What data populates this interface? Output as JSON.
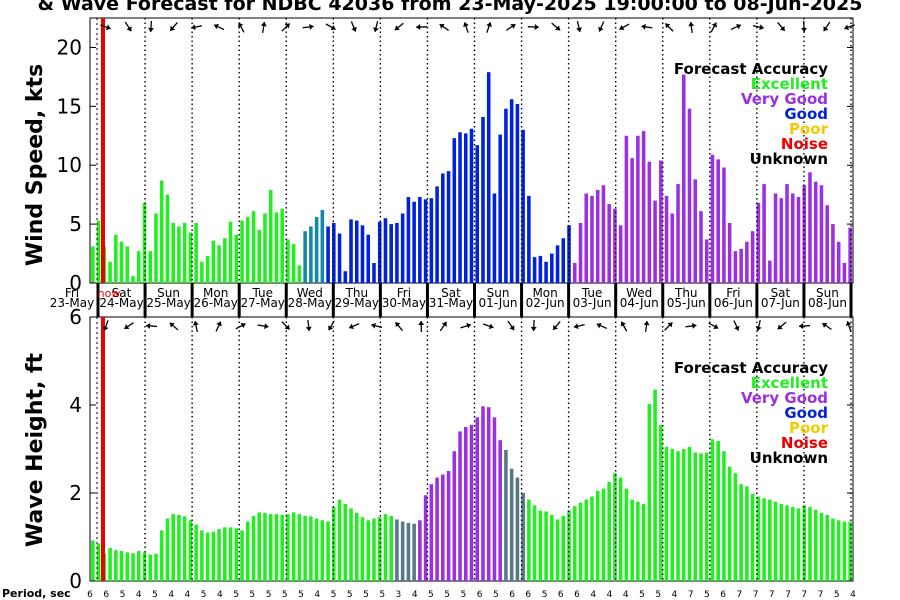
{
  "chart_data": [
    {
      "type": "bar",
      "title": "& Wave Forecast for NDBC 42036 from 23-May-2025 19:00:00 to 08-Jun-2025",
      "ylabel": "Wind Speed, kts",
      "ylim": [
        0,
        22.5
      ],
      "yticks": [
        0,
        5,
        10,
        15,
        20
      ],
      "grid": "dotted vertical lines at day boundaries",
      "now_marker_label": "now",
      "legend": {
        "title": "Forecast Accuracy",
        "position": "top-right",
        "items": [
          {
            "label": "Excellent",
            "color": "#22ee22"
          },
          {
            "label": "Very Good",
            "color": "#9a30e0"
          },
          {
            "label": "Good",
            "color": "#0022dd"
          },
          {
            "label": "Poor",
            "color": "#f0cc00"
          },
          {
            "label": "Noise",
            "color": "#ee0000"
          },
          {
            "label": "Unknown",
            "color": "#000000"
          }
        ]
      },
      "day_labels": [
        {
          "day": "Fri",
          "date": "23-May"
        },
        {
          "day": "Sat",
          "date": "24-May"
        },
        {
          "day": "Sun",
          "date": "25-May"
        },
        {
          "day": "Mon",
          "date": "26-May"
        },
        {
          "day": "Tue",
          "date": "27-May"
        },
        {
          "day": "Wed",
          "date": "28-May"
        },
        {
          "day": "Thu",
          "date": "29-May"
        },
        {
          "day": "Fri",
          "date": "30-May"
        },
        {
          "day": "Sat",
          "date": "31-May"
        },
        {
          "day": "Sun",
          "date": "01-Jun"
        },
        {
          "day": "Mon",
          "date": "02-Jun"
        },
        {
          "day": "Tue",
          "date": "03-Jun"
        },
        {
          "day": "Wed",
          "date": "04-Jun"
        },
        {
          "day": "Thu",
          "date": "05-Jun"
        },
        {
          "day": "Fri",
          "date": "06-Jun"
        },
        {
          "day": "Sat",
          "date": "07-Jun"
        },
        {
          "day": "Sun",
          "date": "08-Jun"
        }
      ],
      "values": [
        3.1,
        5.3,
        3.1,
        1.8,
        4.1,
        3.5,
        3.1,
        0.6,
        2.7,
        6.8,
        2.7,
        5.9,
        8.7,
        7.5,
        5.1,
        4.8,
        5.1,
        4.3,
        5.1,
        1.8,
        2.3,
        3.6,
        3.2,
        3.8,
        5.2,
        4.1,
        5.3,
        5.6,
        6.1,
        4.5,
        5.9,
        7.9,
        6.0,
        6.3,
        3.7,
        3.3,
        1.5,
        4.4,
        4.8,
        5.6,
        6.2,
        4.8,
        5.1,
        4.2,
        1.0,
        5.4,
        5.3,
        4.9,
        4.1,
        1.7,
        5.2,
        5.5,
        5.0,
        5.1,
        5.9,
        7.3,
        6.9,
        7.3,
        7.1,
        7.2,
        8.2,
        9.3,
        9.5,
        12.3,
        12.8,
        12.7,
        13.1,
        11.7,
        14.1,
        17.9,
        7.6,
        12.6,
        14.8,
        15.6,
        15.2,
        13.0,
        7.4,
        2.2,
        2.3,
        1.8,
        2.5,
        3.2,
        3.8,
        4.9,
        1.7,
        5.1,
        7.6,
        7.4,
        7.9,
        8.3,
        6.7,
        6.3,
        4.9,
        12.5,
        10.6,
        12.5,
        12.9,
        10.3,
        7.0,
        10.4,
        7.4,
        5.9,
        8.4,
        17.7,
        14.8,
        8.8,
        6.1,
        3.7,
        10.9,
        10.5,
        9.8,
        5.1,
        2.7,
        2.9,
        3.5,
        4.4,
        6.8,
        8.4,
        1.9,
        7.6,
        7.2,
        8.4,
        7.6,
        7.3,
        8.3,
        9.4,
        8.6,
        8.3,
        6.6,
        5.0,
        3.5,
        1.7,
        4.7
      ],
      "colors_by_range": [
        {
          "from": 0,
          "to": 36,
          "color": "#22ee22"
        },
        {
          "from": 37,
          "to": 40,
          "color": "#1188aa"
        },
        {
          "from": 41,
          "to": 76,
          "color": "#0022dd"
        },
        {
          "from": 77,
          "to": 83,
          "color": "#0022dd"
        },
        {
          "from": 84,
          "to": 132,
          "color": "#9a30e0"
        }
      ]
    },
    {
      "type": "bar",
      "ylabel": "Wave Height, ft",
      "xlabel": "Period, sec",
      "ylim": [
        0,
        6
      ],
      "yticks": [
        0,
        2,
        4,
        6
      ],
      "legend": {
        "title": "Forecast Accuracy",
        "position": "top-right",
        "items": [
          {
            "label": "Excellent",
            "color": "#22ee22"
          },
          {
            "label": "Very Good",
            "color": "#9a30e0"
          },
          {
            "label": "Good",
            "color": "#0022dd"
          },
          {
            "label": "Poor",
            "color": "#f0cc00"
          },
          {
            "label": "Noise",
            "color": "#ee0000"
          },
          {
            "label": "Unknown",
            "color": "#000000"
          }
        ]
      },
      "period_labels": [
        "6",
        "6",
        "5",
        "4",
        "5",
        "4",
        "4",
        "5",
        "4",
        "5",
        "5",
        "5",
        "5",
        "5",
        "4",
        "5",
        "5",
        "5",
        "5",
        "3",
        "4",
        "5",
        "5",
        "5",
        "6",
        "5",
        "6",
        "6",
        "5",
        "6",
        "6",
        "4",
        "4",
        "4",
        "5",
        "5",
        "4",
        "7",
        "5",
        "6",
        "7",
        "7",
        "7",
        "7",
        "7",
        "7",
        "5",
        "4"
      ],
      "values": [
        0.92,
        0.85,
        0.62,
        0.75,
        0.7,
        0.68,
        0.65,
        0.63,
        0.68,
        0.65,
        0.6,
        0.62,
        1.15,
        1.42,
        1.52,
        1.5,
        1.47,
        1.38,
        1.28,
        1.15,
        1.1,
        1.12,
        1.18,
        1.22,
        1.22,
        1.2,
        1.15,
        1.35,
        1.48,
        1.56,
        1.55,
        1.52,
        1.52,
        1.5,
        1.52,
        1.56,
        1.52,
        1.48,
        1.47,
        1.42,
        1.38,
        1.35,
        1.68,
        1.85,
        1.75,
        1.65,
        1.55,
        1.45,
        1.38,
        1.42,
        1.45,
        1.52,
        1.48,
        1.4,
        1.35,
        1.32,
        1.3,
        1.38,
        1.95,
        2.2,
        2.35,
        2.42,
        2.5,
        2.95,
        3.4,
        3.5,
        3.55,
        3.72,
        3.97,
        3.95,
        3.72,
        3.2,
        2.98,
        2.55,
        2.35,
        2.0,
        1.85,
        1.72,
        1.6,
        1.58,
        1.5,
        1.4,
        1.48,
        1.6,
        1.7,
        1.78,
        1.85,
        1.92,
        2.05,
        2.1,
        2.25,
        2.45,
        2.35,
        2.1,
        1.85,
        1.8,
        1.75,
        4.02,
        4.35,
        3.55,
        3.05,
        3.0,
        2.95,
        3.0,
        3.05,
        2.92,
        2.9,
        2.92,
        3.22,
        3.18,
        2.95,
        2.6,
        2.45,
        2.2,
        2.15,
        1.98,
        1.92,
        1.88,
        1.85,
        1.8,
        1.75,
        1.72,
        1.68,
        1.65,
        1.72,
        1.68,
        1.62,
        1.55,
        1.5,
        1.42,
        1.38,
        1.35,
        1.35
      ],
      "colors_by_range": [
        {
          "from": 0,
          "to": 56,
          "color": "#22ee22"
        },
        {
          "from": 53,
          "to": 56,
          "color": "#557788"
        },
        {
          "from": 57,
          "to": 71,
          "color": "#9a30e0"
        },
        {
          "from": 72,
          "to": 75,
          "color": "#557788"
        },
        {
          "from": 76,
          "to": 132,
          "color": "#22ee22"
        }
      ]
    }
  ]
}
